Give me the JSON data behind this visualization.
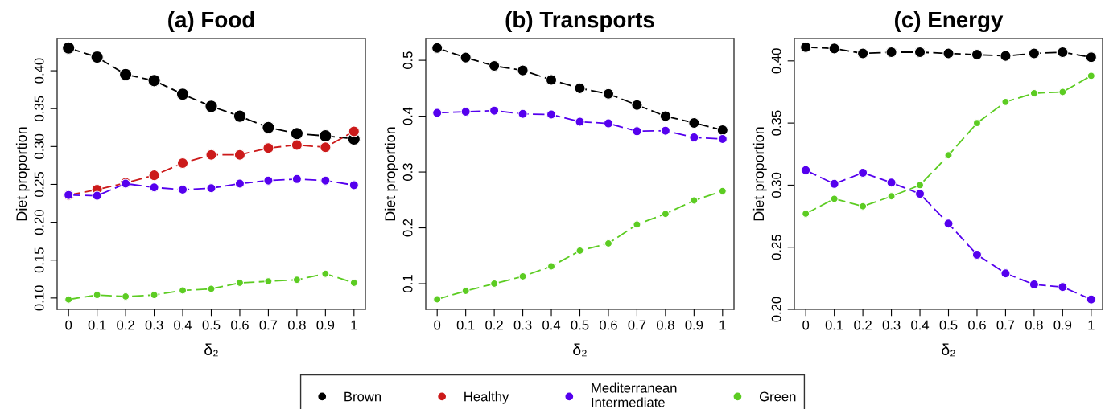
{
  "chart_data": [
    {
      "type": "line",
      "title": "(a) Food",
      "xlabel": "δ₂",
      "ylabel": "Diet proportion",
      "marker": "circle",
      "line_style": "dashed",
      "grid": false,
      "legend": "bottom",
      "x": [
        0,
        0.1,
        0.2,
        0.3,
        0.4,
        0.5,
        0.6,
        0.7,
        0.8,
        0.9,
        1
      ],
      "xlim": [
        -0.04,
        1.04
      ],
      "xticks": [
        0,
        0.1,
        0.2,
        0.3,
        0.4,
        0.5,
        0.6,
        0.7,
        0.8,
        0.9,
        1
      ],
      "ylim": [
        0.085,
        0.4425
      ],
      "yticks": [
        {
          "value": 0.1,
          "label": "0.10"
        },
        {
          "value": 0.15,
          "label": "0.15"
        },
        {
          "value": 0.2,
          "label": "0.20"
        },
        {
          "value": 0.25,
          "label": "0.25"
        },
        {
          "value": 0.3,
          "label": "0.30"
        },
        {
          "value": 0.35,
          "label": "0.35"
        },
        {
          "value": 0.4,
          "label": "0.40"
        }
      ],
      "series": [
        {
          "name": "Brown",
          "color": "#000000",
          "values": [
            0.43,
            0.418,
            0.395,
            0.387,
            0.369,
            0.353,
            0.34,
            0.325,
            0.317,
            0.314,
            0.31
          ]
        },
        {
          "name": "Healthy",
          "color": "#cc1a1a",
          "values": [
            0.236,
            0.243,
            0.252,
            0.262,
            0.278,
            0.289,
            0.289,
            0.298,
            0.302,
            0.299,
            0.32
          ]
        },
        {
          "name": "Mediterranean\nIntermediate",
          "color": "#5500ee",
          "values": [
            0.236,
            0.235,
            0.251,
            0.246,
            0.243,
            0.245,
            0.251,
            0.255,
            0.257,
            0.255,
            0.249
          ]
        },
        {
          "name": "Green",
          "color": "#5ccc22",
          "values": [
            0.098,
            0.104,
            0.102,
            0.104,
            0.11,
            0.112,
            0.12,
            0.122,
            0.124,
            0.132,
            0.12
          ]
        }
      ]
    },
    {
      "type": "line",
      "title": "(b) Transports",
      "xlabel": "δ₂",
      "ylabel": "Diet proportion",
      "marker": "circle",
      "line_style": "dashed",
      "grid": false,
      "x": [
        0,
        0.1,
        0.2,
        0.3,
        0.4,
        0.5,
        0.6,
        0.7,
        0.8,
        0.9,
        1
      ],
      "xlim": [
        -0.04,
        1.04
      ],
      "xticks": [
        0,
        0.1,
        0.2,
        0.3,
        0.4,
        0.5,
        0.6,
        0.7,
        0.8,
        0.9,
        1
      ],
      "ylim": [
        0.054,
        0.539
      ],
      "yticks": [
        0.1,
        0.2,
        0.3,
        0.4,
        0.5
      ],
      "series": [
        {
          "name": "Brown",
          "color": "#000000",
          "values": [
            0.522,
            0.505,
            0.49,
            0.482,
            0.465,
            0.45,
            0.44,
            0.42,
            0.4,
            0.388,
            0.375
          ]
        },
        {
          "name": "Mediterranean\nIntermediate",
          "color": "#5500ee",
          "values": [
            0.406,
            0.408,
            0.41,
            0.404,
            0.403,
            0.39,
            0.387,
            0.373,
            0.374,
            0.362,
            0.359
          ]
        },
        {
          "name": "Green",
          "color": "#5ccc22",
          "values": [
            0.072,
            0.087,
            0.1,
            0.113,
            0.131,
            0.159,
            0.172,
            0.206,
            0.225,
            0.249,
            0.266
          ]
        }
      ]
    },
    {
      "type": "line",
      "title": "(c) Energy",
      "xlabel": "δ₂",
      "ylabel": "Diet proportion",
      "marker": "circle",
      "line_style": "dashed",
      "grid": false,
      "x": [
        0,
        0.1,
        0.2,
        0.3,
        0.4,
        0.5,
        0.6,
        0.7,
        0.8,
        0.9,
        1
      ],
      "xlim": [
        -0.04,
        1.04
      ],
      "xticks": [
        0,
        0.1,
        0.2,
        0.3,
        0.4,
        0.5,
        0.6,
        0.7,
        0.8,
        0.9,
        1
      ],
      "ylim": [
        0.2,
        0.418
      ],
      "yticks": [
        {
          "value": 0.2,
          "label": "0.20"
        },
        {
          "value": 0.25,
          "label": "0.25"
        },
        {
          "value": 0.3,
          "label": "0.30"
        },
        {
          "value": 0.35,
          "label": "0.35"
        },
        {
          "value": 0.4,
          "label": "0.40"
        }
      ],
      "series": [
        {
          "name": "Brown",
          "color": "#000000",
          "values": [
            0.411,
            0.41,
            0.406,
            0.407,
            0.407,
            0.406,
            0.405,
            0.404,
            0.406,
            0.407,
            0.403
          ]
        },
        {
          "name": "Mediterranean\nIntermediate",
          "color": "#5500ee",
          "values": [
            0.312,
            0.301,
            0.31,
            0.302,
            0.293,
            0.269,
            0.244,
            0.229,
            0.22,
            0.218,
            0.208
          ]
        },
        {
          "name": "Green",
          "color": "#5ccc22",
          "values": [
            0.277,
            0.289,
            0.283,
            0.291,
            0.3,
            0.324,
            0.35,
            0.367,
            0.374,
            0.375,
            0.388
          ]
        }
      ]
    }
  ]
}
